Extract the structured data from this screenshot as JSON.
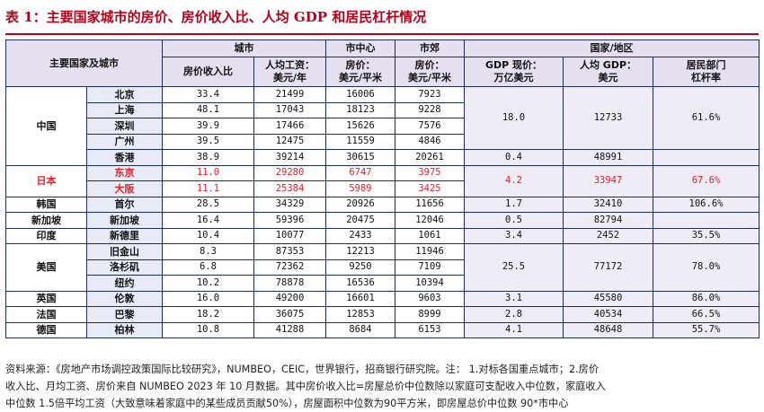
{
  "title": "表 1：主要国家城市的房价、房价收入比、人均 GDP 和居民杠杆情况",
  "header": {
    "corner": "主要国家及城市",
    "group_city": "城市",
    "group_center": "市中心",
    "group_suburb": "市郊",
    "group_nation": "国家/地区",
    "col_ratio": "房价收入比",
    "col_wage": "人均工资：\n美元/年",
    "col_price_center": "房价：\n美元/平米",
    "col_price_suburb": "房价：\n美元/平米",
    "col_gdp": "GDP 现价：\n万亿美元",
    "col_gdp_pc": "人均 GDP：\n美元",
    "col_leverage": "居民部门\n杠杆率"
  },
  "rows": [
    {
      "country": "中国",
      "city": "北京",
      "ratio": "33.4",
      "wage": "21499",
      "center": "16006",
      "suburb": "7923",
      "gdp": "18.0",
      "gdp_pc": "12733",
      "leverage": "61.6%"
    },
    {
      "city": "上海",
      "ratio": "48.1",
      "wage": "17043",
      "center": "18123",
      "suburb": "9228"
    },
    {
      "city": "深圳",
      "ratio": "39.9",
      "wage": "17466",
      "center": "15626",
      "suburb": "7576"
    },
    {
      "city": "广州",
      "ratio": "39.5",
      "wage": "12475",
      "center": "11559",
      "suburb": "4846"
    },
    {
      "city": "香港",
      "ratio": "38.9",
      "wage": "39214",
      "center": "30615",
      "suburb": "20261",
      "gdp": "0.4",
      "gdp_pc": "48991",
      "leverage": ""
    },
    {
      "country": "日本",
      "city": "东京",
      "ratio": "11.0",
      "wage": "29280",
      "center": "6747",
      "suburb": "3975",
      "gdp": "4.2",
      "gdp_pc": "33947",
      "leverage": "67.6%"
    },
    {
      "city": "大阪",
      "ratio": "11.1",
      "wage": "25384",
      "center": "5989",
      "suburb": "3425"
    },
    {
      "country": "韩国",
      "city": "首尔",
      "ratio": "28.5",
      "wage": "34329",
      "center": "20926",
      "suburb": "11656",
      "gdp": "1.7",
      "gdp_pc": "32410",
      "leverage": "106.6%"
    },
    {
      "country": "新加坡",
      "city": "新加坡",
      "ratio": "16.4",
      "wage": "59396",
      "center": "20475",
      "suburb": "12046",
      "gdp": "0.5",
      "gdp_pc": "82794",
      "leverage": ""
    },
    {
      "country": "印度",
      "city": "新德里",
      "ratio": "10.4",
      "wage": "10077",
      "center": "2433",
      "suburb": "1061",
      "gdp": "3.4",
      "gdp_pc": "2452",
      "leverage": "35.5%"
    },
    {
      "country": "美国",
      "city": "旧金山",
      "ratio": "8.3",
      "wage": "87353",
      "center": "12213",
      "suburb": "11946",
      "gdp": "25.5",
      "gdp_pc": "77172",
      "leverage": "78.0%"
    },
    {
      "city": "洛杉矶",
      "ratio": "6.8",
      "wage": "72362",
      "center": "9250",
      "suburb": "7109"
    },
    {
      "city": "纽约",
      "ratio": "10.2",
      "wage": "78878",
      "center": "16536",
      "suburb": "10394"
    },
    {
      "country": "英国",
      "city": "伦敦",
      "ratio": "16.0",
      "wage": "49200",
      "center": "16601",
      "suburb": "9603",
      "gdp": "3.1",
      "gdp_pc": "45580",
      "leverage": "86.0%"
    },
    {
      "country": "法国",
      "city": "巴黎",
      "ratio": "18.2",
      "wage": "36075",
      "center": "12853",
      "suburb": "8999",
      "gdp": "2.8",
      "gdp_pc": "40534",
      "leverage": "66.5%"
    },
    {
      "country": "德国",
      "city": "柏林",
      "ratio": "10.8",
      "wage": "41288",
      "center": "8684",
      "suburb": "6153",
      "gdp": "4.1",
      "gdp_pc": "48648",
      "leverage": "55.7%"
    }
  ],
  "source": [
    "资料来源：《房地产市场调控政策国际比较研究》，NUMBEO，CEIC，世界银行，招商银行研究院。注： 1.对标各国重点城市；2.房价",
    "收入比、月均工资、房价来自 NUMBEO 2023 年 10 月数据。其中房价收入比=房屋总价中位数除以家庭可支配收入中位数，家庭收入",
    "中位数 1.5倍平均工资（大致意味着家庭中的某些成员贡献50%），房屋面积中位数为90平方米，即房屋总价中位数 90*市中心"
  ],
  "colors": {
    "title": "#b6001b",
    "header_bg": "#e5dff0",
    "city_bg": "#e6ebf6",
    "highlight": "#e0202a",
    "border": "#1f2d5a"
  }
}
